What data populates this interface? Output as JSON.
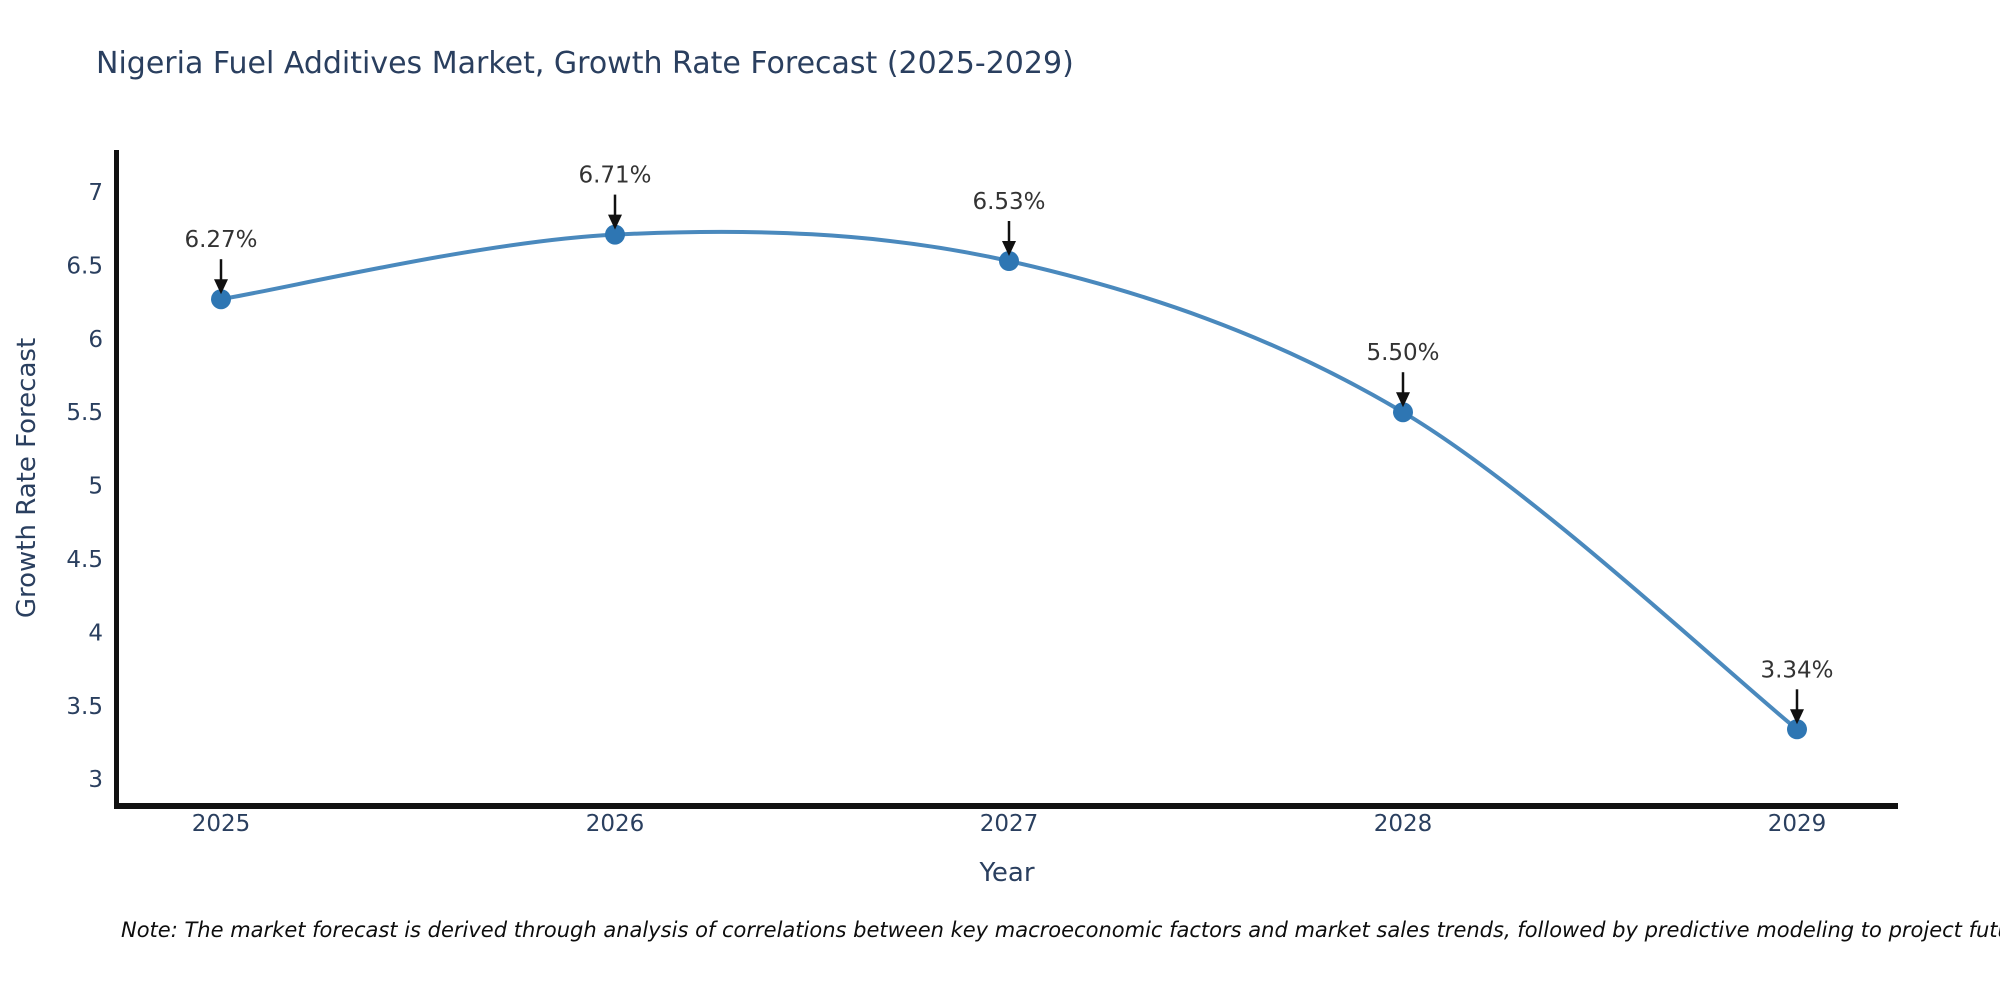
{
  "chart_data": {
    "type": "line",
    "title": "Nigeria Fuel Additives Market, Growth Rate Forecast (2025-2029)",
    "xlabel": "Year",
    "ylabel": "Growth Rate Forecast",
    "x": [
      2025,
      2026,
      2027,
      2028,
      2029
    ],
    "values": [
      6.27,
      6.71,
      6.53,
      5.5,
      3.34
    ],
    "point_labels": [
      "6.27%",
      "6.71%",
      "6.53%",
      "5.50%",
      "3.34%"
    ],
    "yticks": [
      7,
      6.5,
      6,
      5.5,
      5,
      4.5,
      4,
      3.5,
      3
    ],
    "ylim": [
      2.8,
      7.3
    ],
    "grid": false,
    "legend_position": "none",
    "line_shape": "spline",
    "colors": {
      "line": "#4a89bd",
      "marker": "#2e76b3",
      "axis": "#111111",
      "tick_text": "#2a3f5f",
      "annotation_text": "#333333",
      "arrow": "#111111"
    }
  },
  "note": "Note: The market forecast is derived through analysis of correlations between key macroeconomic factors and market sales trends, followed by predictive modeling to project future sales"
}
